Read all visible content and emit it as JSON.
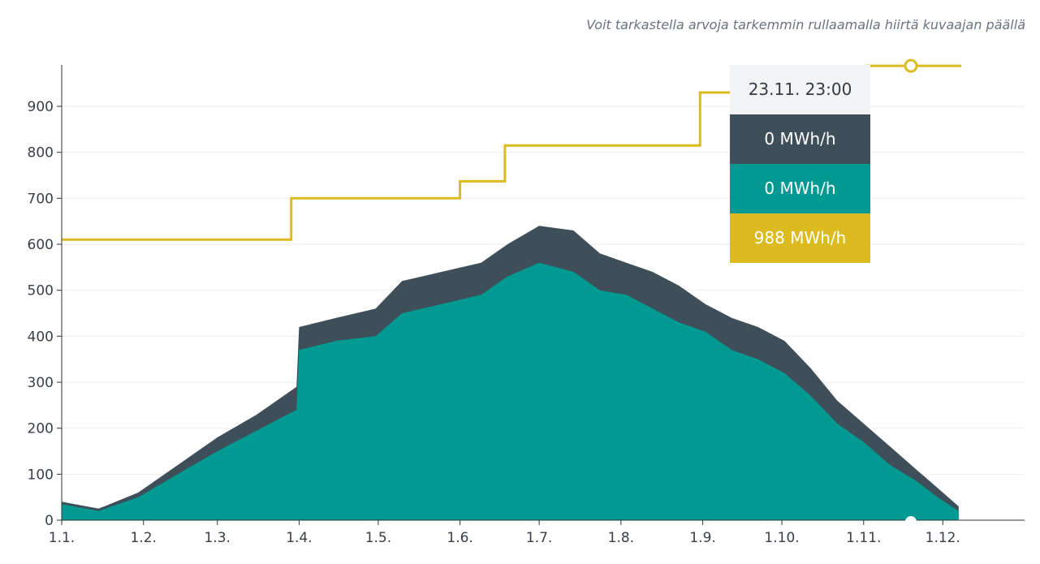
{
  "hint": "Voit tarkastella arvoja tarkemmin rullaamalla hiirtä kuvaajan päällä",
  "colors": {
    "series1": "#3e4f5a",
    "series2": "#009a92",
    "series3": "#dbbb1f",
    "grid": "#eeeeee",
    "axis": "#333333"
  },
  "tooltip": {
    "date": "23.11. 23:00",
    "rows": [
      {
        "value": "0 MWh/h",
        "color": "#3e4f5a"
      },
      {
        "value": "0 MWh/h",
        "color": "#009a92"
      },
      {
        "value": "988 MWh/h",
        "color": "#dbbb1f"
      }
    ]
  },
  "chart_data": {
    "type": "area",
    "xlim": [
      1,
      366
    ],
    "ylim": [
      0,
      990
    ],
    "yticks": [
      0,
      100,
      200,
      300,
      400,
      500,
      600,
      700,
      800,
      900
    ],
    "xticks": [
      {
        "day": 1,
        "label": "1.1."
      },
      {
        "day": 32,
        "label": "1.2."
      },
      {
        "day": 60,
        "label": "1.3."
      },
      {
        "day": 91,
        "label": "1.4."
      },
      {
        "day": 121,
        "label": "1.5."
      },
      {
        "day": 152,
        "label": "1.6."
      },
      {
        "day": 182,
        "label": "1.7."
      },
      {
        "day": 213,
        "label": "1.8."
      },
      {
        "day": 244,
        "label": "1.9."
      },
      {
        "day": 274,
        "label": "1.10."
      },
      {
        "day": 305,
        "label": "1.11."
      },
      {
        "day": 335,
        "label": "1.12."
      }
    ],
    "series": [
      {
        "type": "area",
        "color": "#3e4f5a",
        "points": [
          [
            1,
            40
          ],
          [
            15,
            25
          ],
          [
            30,
            60
          ],
          [
            45,
            120
          ],
          [
            60,
            180
          ],
          [
            75,
            230
          ],
          [
            90,
            290
          ],
          [
            91,
            420
          ],
          [
            105,
            440
          ],
          [
            120,
            460
          ],
          [
            130,
            520
          ],
          [
            145,
            540
          ],
          [
            160,
            560
          ],
          [
            170,
            600
          ],
          [
            182,
            640
          ],
          [
            195,
            630
          ],
          [
            205,
            580
          ],
          [
            215,
            560
          ],
          [
            225,
            540
          ],
          [
            235,
            510
          ],
          [
            245,
            470
          ],
          [
            255,
            440
          ],
          [
            265,
            420
          ],
          [
            275,
            390
          ],
          [
            285,
            330
          ],
          [
            295,
            260
          ],
          [
            305,
            210
          ],
          [
            315,
            160
          ],
          [
            325,
            110
          ],
          [
            333,
            70
          ],
          [
            341,
            30
          ]
        ]
      },
      {
        "type": "area",
        "color": "#009a92",
        "points": [
          [
            1,
            35
          ],
          [
            15,
            20
          ],
          [
            30,
            50
          ],
          [
            45,
            100
          ],
          [
            60,
            150
          ],
          [
            75,
            195
          ],
          [
            90,
            240
          ],
          [
            91,
            370
          ],
          [
            105,
            390
          ],
          [
            120,
            400
          ],
          [
            130,
            450
          ],
          [
            145,
            470
          ],
          [
            160,
            490
          ],
          [
            170,
            530
          ],
          [
            182,
            560
          ],
          [
            195,
            540
          ],
          [
            205,
            500
          ],
          [
            215,
            490
          ],
          [
            225,
            460
          ],
          [
            235,
            430
          ],
          [
            245,
            410
          ],
          [
            255,
            370
          ],
          [
            265,
            350
          ],
          [
            275,
            320
          ],
          [
            285,
            270
          ],
          [
            295,
            210
          ],
          [
            305,
            170
          ],
          [
            315,
            120
          ],
          [
            325,
            85
          ],
          [
            333,
            50
          ],
          [
            341,
            20
          ]
        ]
      },
      {
        "type": "step",
        "color": "#dbbb1f",
        "points": [
          [
            1,
            610
          ],
          [
            88,
            610
          ],
          [
            88,
            700
          ],
          [
            152,
            700
          ],
          [
            152,
            737
          ],
          [
            169,
            737
          ],
          [
            169,
            815
          ],
          [
            243,
            815
          ],
          [
            243,
            930
          ],
          [
            306,
            930
          ],
          [
            306,
            988
          ],
          [
            342,
            988
          ]
        ]
      }
    ]
  }
}
